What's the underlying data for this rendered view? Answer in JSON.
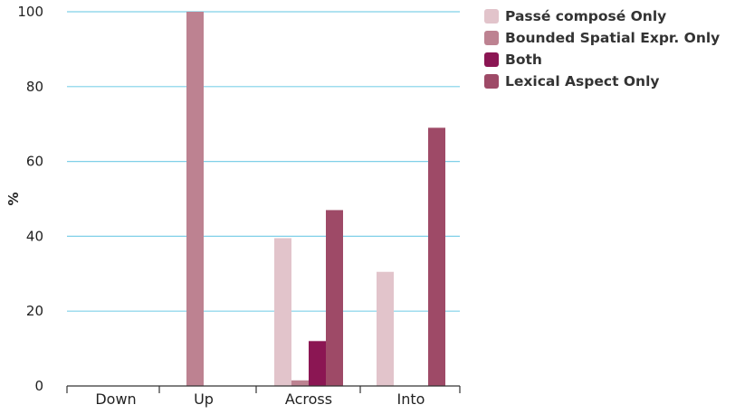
{
  "chart_data": {
    "type": "bar",
    "title": "",
    "xlabel": "",
    "ylabel": "%",
    "ylim": [
      0,
      100
    ],
    "yticks": [
      0,
      20,
      40,
      60,
      80,
      100
    ],
    "grid": true,
    "legend_position": "top-right",
    "categories": [
      "Down",
      "Up",
      "Across",
      "Into"
    ],
    "series": [
      {
        "name": "Passé composé Only",
        "color": "#e2c4cb",
        "values": [
          0,
          0,
          39.5,
          30.5
        ]
      },
      {
        "name": "Bounded Spatial Expr. Only",
        "color": "#bd8291",
        "values": [
          0,
          100,
          1.5,
          0
        ]
      },
      {
        "name": "Both",
        "color": "#8b1653",
        "values": [
          0,
          0,
          12,
          0
        ]
      },
      {
        "name": "Lexical Aspect Only",
        "color": "#9e4a67",
        "values": [
          0,
          0,
          47,
          69
        ]
      }
    ]
  }
}
